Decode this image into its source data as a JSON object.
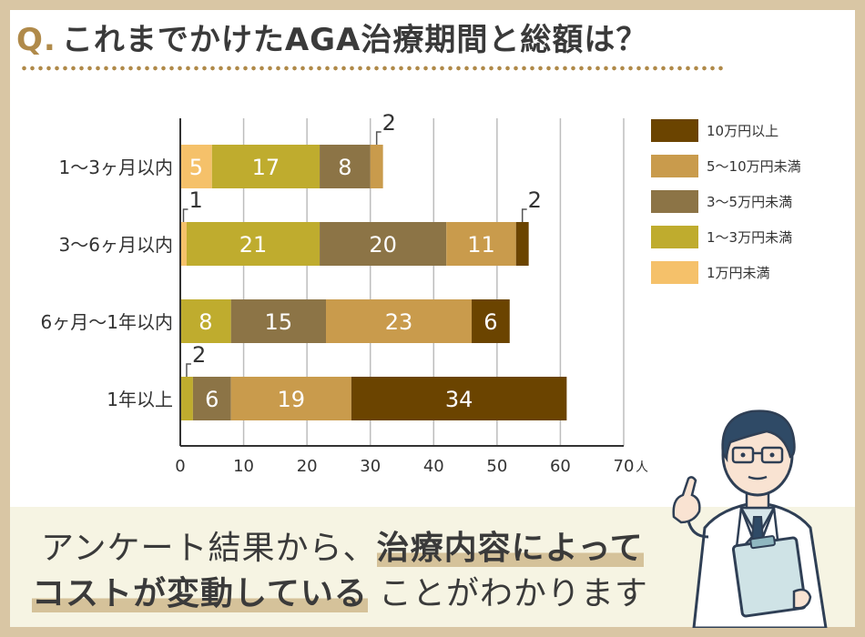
{
  "title": {
    "q": "Q.",
    "text": "これまでかけたAGA治療期間と総額は？"
  },
  "chart_data": {
    "type": "bar",
    "orientation": "horizontal",
    "stacked": true,
    "categories": [
      "1〜3ヶ月以内",
      "3〜6ヶ月以内",
      "6ヶ月〜1年以内",
      "1年以上"
    ],
    "series": [
      {
        "name": "1万円未満",
        "values": [
          5,
          1,
          0,
          0
        ],
        "color": "#f5c16a"
      },
      {
        "name": "1〜3万円未満",
        "values": [
          17,
          21,
          8,
          2
        ],
        "color": "#bfac2e"
      },
      {
        "name": "3〜5万円未満",
        "values": [
          8,
          20,
          15,
          6
        ],
        "color": "#8c7446"
      },
      {
        "name": "5〜10万円未満",
        "values": [
          2,
          11,
          23,
          19
        ],
        "color": "#c99b4c"
      },
      {
        "name": "10万円以上",
        "values": [
          0,
          2,
          6,
          34
        ],
        "color": "#6b4400"
      }
    ],
    "legend_order": [
      "10万円以上",
      "5〜10万円未満",
      "3〜5万円未満",
      "1〜3万円未満",
      "1万円未満"
    ],
    "xlim": [
      0,
      70
    ],
    "xticks": [
      0,
      10,
      20,
      30,
      40,
      50,
      60,
      70
    ],
    "xunit": "人",
    "grid": true,
    "legend": "right"
  },
  "bottom": {
    "line1_plain": "アンケート結果から、",
    "line1_bold": "治療内容によって",
    "line2_bold": "コストが変動している",
    "line2_plain": "ことがわかります"
  }
}
